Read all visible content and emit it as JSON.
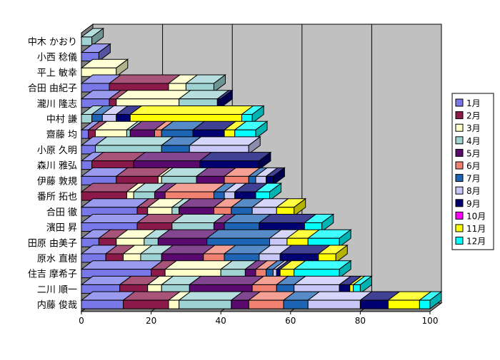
{
  "chart_data": {
    "type": "bar",
    "orientation": "horizontal",
    "stacked": true,
    "three_d": true,
    "grid": true,
    "legend_position": "right",
    "xlim": [
      0,
      100
    ],
    "x_ticks": [
      "0",
      "20",
      "40",
      "60",
      "80",
      "100"
    ],
    "categories": [
      "中木 かおり",
      "小西 稔儀",
      "平上 敏幸",
      "合田 由紀子",
      "瀧川 隆志",
      "中村 謙",
      "齋藤 均",
      "小原 久明",
      "森川 雅弘",
      "伊藤 敦規",
      "番所 拓也",
      "合田 徹",
      "濱田 昇",
      "田原 由美子",
      "原水 直樹",
      "住吉 摩希子",
      "二川 順一",
      "内藤 俊哉"
    ],
    "series": [
      {
        "name": "1月",
        "color": "#7878e8",
        "values": [
          0,
          5,
          0,
          8,
          8,
          0,
          2,
          4,
          3,
          10,
          0,
          16,
          16,
          5,
          7,
          20,
          11,
          12
        ]
      },
      {
        "name": "2月",
        "color": "#8b1a4b",
        "values": [
          0,
          0,
          0,
          17,
          2,
          0,
          2,
          0,
          12,
          12,
          13,
          3,
          10,
          5,
          5,
          4,
          8,
          13
        ]
      },
      {
        "name": "3月",
        "color": "#ffffc8",
        "values": [
          0,
          0,
          10,
          5,
          18,
          0,
          9,
          0,
          0,
          1,
          2,
          7,
          0,
          8,
          5,
          16,
          4,
          3
        ]
      },
      {
        "name": "4月",
        "color": "#9fd3d3",
        "values": [
          3,
          0,
          0,
          8,
          11,
          3,
          1,
          19,
          0,
          10,
          6,
          2,
          12,
          4,
          6,
          7,
          8,
          15
        ]
      },
      {
        "name": "5月",
        "color": "#5a0a6e",
        "values": [
          0,
          0,
          0,
          0,
          0,
          0,
          7,
          0,
          19,
          8,
          3,
          10,
          3,
          14,
          12,
          3,
          18,
          5
        ]
      },
      {
        "name": "6月",
        "color": "#f08070",
        "values": [
          0,
          0,
          0,
          0,
          0,
          0,
          2,
          0,
          0,
          7,
          14,
          5,
          0,
          0,
          6,
          3,
          7,
          10
        ]
      },
      {
        "name": "7月",
        "color": "#1e64b4",
        "values": [
          0,
          0,
          0,
          0,
          0,
          3,
          9,
          8,
          0,
          2,
          3,
          6,
          10,
          18,
          10,
          2,
          5,
          7
        ]
      },
      {
        "name": "8月",
        "color": "#c8c8f8",
        "values": [
          0,
          0,
          0,
          0,
          0,
          4,
          0,
          17,
          0,
          3,
          3,
          7,
          0,
          5,
          6,
          1,
          13,
          15
        ]
      },
      {
        "name": "9月",
        "color": "#000070",
        "values": [
          0,
          0,
          0,
          0,
          1,
          4,
          9,
          0,
          17,
          2,
          6,
          0,
          13,
          0,
          11,
          1,
          3,
          8
        ]
      },
      {
        "name": "10月",
        "color": "#ff00ff",
        "values": [
          0,
          0,
          0,
          0,
          0,
          0,
          0,
          0,
          0,
          0,
          0,
          0,
          0,
          0,
          0,
          0,
          0,
          0
        ]
      },
      {
        "name": "11月",
        "color": "#ffff00",
        "values": [
          0,
          0,
          0,
          0,
          0,
          32,
          3,
          0,
          0,
          0,
          0,
          5,
          0,
          6,
          5,
          4,
          1,
          9
        ]
      },
      {
        "name": "12月",
        "color": "#00ffff",
        "values": [
          0,
          0,
          0,
          0,
          0,
          3,
          6,
          0,
          0,
          0,
          4,
          0,
          5,
          9,
          0,
          13,
          2,
          3
        ]
      }
    ]
  }
}
